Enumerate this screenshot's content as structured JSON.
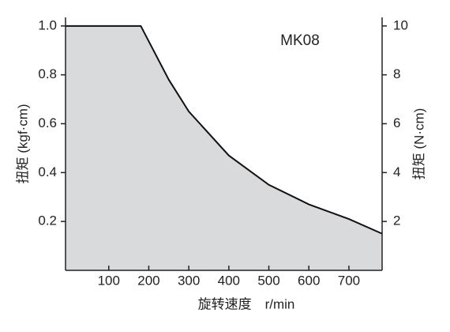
{
  "chart_data": {
    "type": "area",
    "annotation": "MK08",
    "x_label": "旋转速度　r/min",
    "y_label": "扭矩 (kgf·cm)",
    "y2_label": "扭矩 (N·cm)",
    "x": [
      -8,
      180,
      250,
      300,
      400,
      500,
      600,
      700,
      783
    ],
    "series": [
      {
        "color": "#d9dadb",
        "line_color": "#111111",
        "values": [
          1.0,
          1.0,
          0.78,
          0.65,
          0.47,
          0.35,
          0.27,
          0.21,
          0.15
        ]
      }
    ],
    "xlim": [
      -8,
      783
    ],
    "xticks": [
      100,
      200,
      300,
      400,
      500,
      600,
      700
    ],
    "ylim": [
      0,
      1.035
    ],
    "yticks": [
      0.2,
      0.4,
      0.6,
      0.8,
      {
        "value": 1.0,
        "label": "1.0"
      }
    ],
    "y2lim": [
      0,
      10.35
    ],
    "y2ticks": [
      2,
      4,
      6,
      8,
      10
    ]
  }
}
